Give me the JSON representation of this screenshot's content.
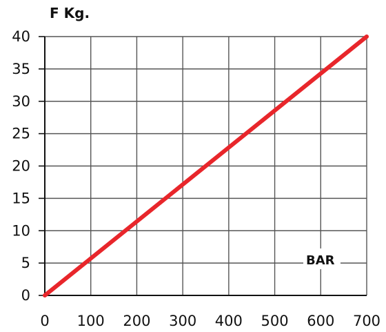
{
  "chart_data": {
    "type": "line",
    "ylabel": "F Kg.",
    "xlabel": "BAR",
    "x_ticks": [
      "0",
      "100",
      "200",
      "300",
      "400",
      "500",
      "600",
      "700"
    ],
    "y_ticks": [
      "0",
      "5",
      "10",
      "15",
      "20",
      "25",
      "30",
      "35",
      "40"
    ],
    "xlim": [
      0,
      700
    ],
    "ylim": [
      0,
      40
    ],
    "grid": true,
    "line_color": "#e8262b",
    "series": [
      {
        "x": [
          0,
          700
        ],
        "y": [
          0,
          40
        ]
      }
    ]
  }
}
